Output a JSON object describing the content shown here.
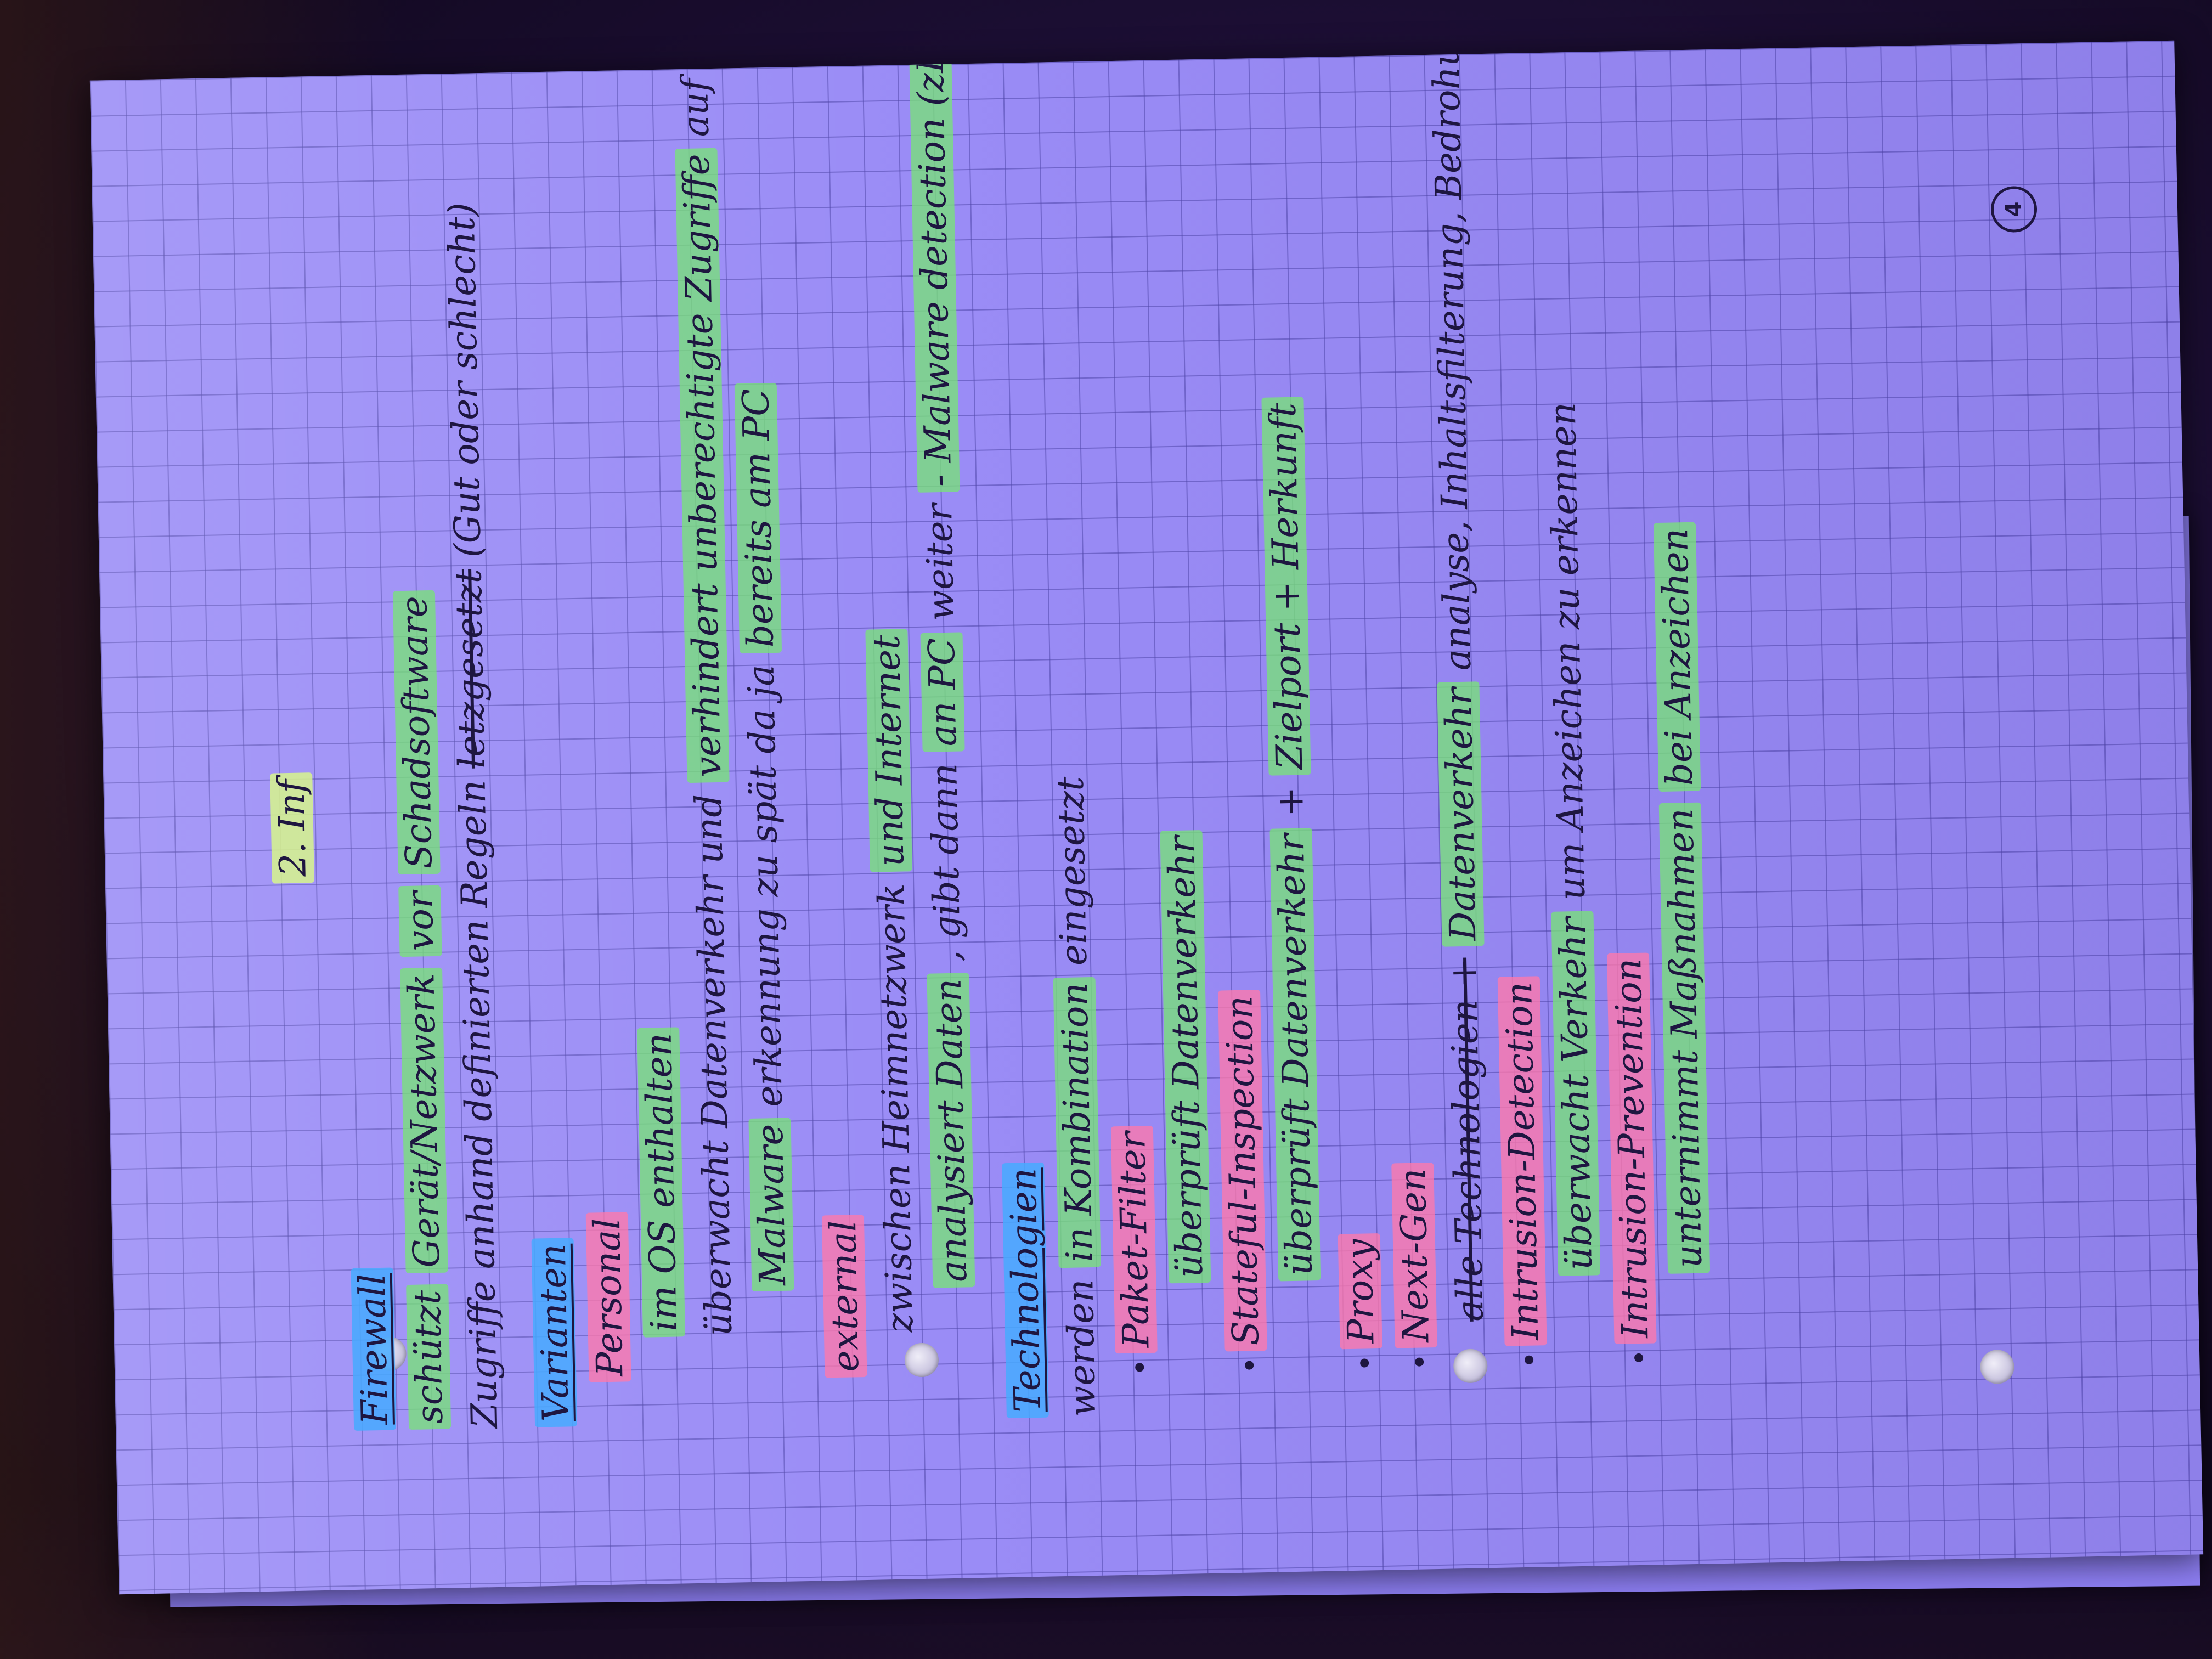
{
  "page_number": "4",
  "title": "2. Inf",
  "lines": {
    "firewall": "Firewall",
    "l1_a": "schützt",
    "l1_b": "Gerät/Netzwerk",
    "l1_c": "vor",
    "l1_d": "Schadsoftware",
    "l2": "Zugriffe anhand definierten Regeln",
    "l2_strike": "letzgesetzt",
    "l2_end": "(Gut oder schlecht)",
    "varianten": "Varianten",
    "personal": "Personal",
    "l3": "im OS enthalten",
    "l4_a": "überwacht Datenverkehr",
    "l4_b": "und",
    "l4_c": "verhindert unberechtigte Zugriffe",
    "l4_d": "auf PC",
    "l5_a": "Malware",
    "l5_b": "erkennung zu spät da ja",
    "l5_c": "bereits am PC",
    "external": "external",
    "l6_a": "zwischen Heimnetzwerk",
    "l6_b": "und Internet",
    "l7_a": "analysiert Daten",
    "l7_b": ", gibt dann",
    "l7_c": "an PC",
    "l7_d": "weiter",
    "l7_e": "- Malware detection (zB Router)",
    "technologien": "Technologien",
    "l8_a": "werden",
    "l8_b": "in Kombination",
    "l8_c": "eingesetzt",
    "paket": "Paket-Filter",
    "l9": "überprüft Datenverkehr",
    "stateful": "Stateful-Inspection",
    "l10_a": "überprüft Datenverkehr",
    "l10_b": "+",
    "l10_c": "Zielport + Herkunft",
    "proxy": "Proxy",
    "nextgen": "Next-Gen",
    "l11_strike": "alle Technologien +",
    "l11_a": "Datenverkehr",
    "l11_b": "analyse, Inhaltsfilterung, Bedrohungen erkennen",
    "ids": "Intrusion-Detection",
    "l12_a": "überwacht Verkehr",
    "l12_b": "um Anzeichen zu erkennen",
    "ips": "Intrusion-Prevention",
    "l13_a": "unternimmt Maßnahmen",
    "l13_b": "bei Anzeichen"
  },
  "colors": {
    "paper": "#9a8cf6",
    "ink": "#1e1640",
    "highlight_green": "#78e178",
    "highlight_pink": "#ff78aa",
    "highlight_blue": "#46aaff",
    "highlight_yellow": "#d7f58c"
  }
}
